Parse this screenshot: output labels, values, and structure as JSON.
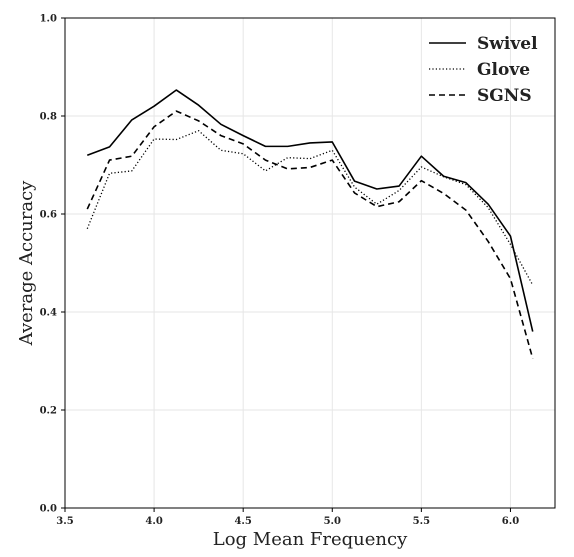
{
  "chart_data": {
    "type": "line",
    "title": "",
    "xlabel": "Log Mean Frequency",
    "ylabel": "Average Accuracy",
    "xlim": [
      3.5,
      6.25
    ],
    "ylim": [
      0.0,
      1.0
    ],
    "xticks": [
      "3.5",
      "4.0",
      "4.5",
      "5.0",
      "5.5",
      "6.0"
    ],
    "yticks": [
      "0.0",
      "0.2",
      "0.4",
      "0.6",
      "0.8",
      "1.0"
    ],
    "grid": true,
    "legend_position": "top-right",
    "x": [
      3.625,
      3.75,
      3.875,
      4.0,
      4.125,
      4.25,
      4.375,
      4.5,
      4.625,
      4.75,
      4.875,
      5.0,
      5.125,
      5.25,
      5.375,
      5.5,
      5.625,
      5.75,
      5.875,
      6.0,
      6.125
    ],
    "series": [
      {
        "name": "Swivel",
        "style": "solid",
        "color": "#000000",
        "values": [
          0.72,
          0.737,
          0.792,
          0.82,
          0.853,
          0.822,
          0.783,
          0.76,
          0.738,
          0.738,
          0.745,
          0.747,
          0.667,
          0.651,
          0.657,
          0.718,
          0.677,
          0.664,
          0.62,
          0.555,
          0.36
        ]
      },
      {
        "name": "Glove",
        "style": "dotted",
        "color": "#000000",
        "values": [
          0.57,
          0.683,
          0.688,
          0.753,
          0.752,
          0.77,
          0.73,
          0.723,
          0.688,
          0.715,
          0.713,
          0.73,
          0.655,
          0.62,
          0.648,
          0.696,
          0.676,
          0.66,
          0.613,
          0.538,
          0.455
        ]
      },
      {
        "name": "SGNS",
        "style": "dashed",
        "color": "#000000",
        "values": [
          0.61,
          0.71,
          0.718,
          0.778,
          0.81,
          0.79,
          0.76,
          0.743,
          0.71,
          0.692,
          0.695,
          0.71,
          0.643,
          0.615,
          0.625,
          0.668,
          0.642,
          0.608,
          0.544,
          0.468,
          0.305
        ]
      }
    ]
  }
}
